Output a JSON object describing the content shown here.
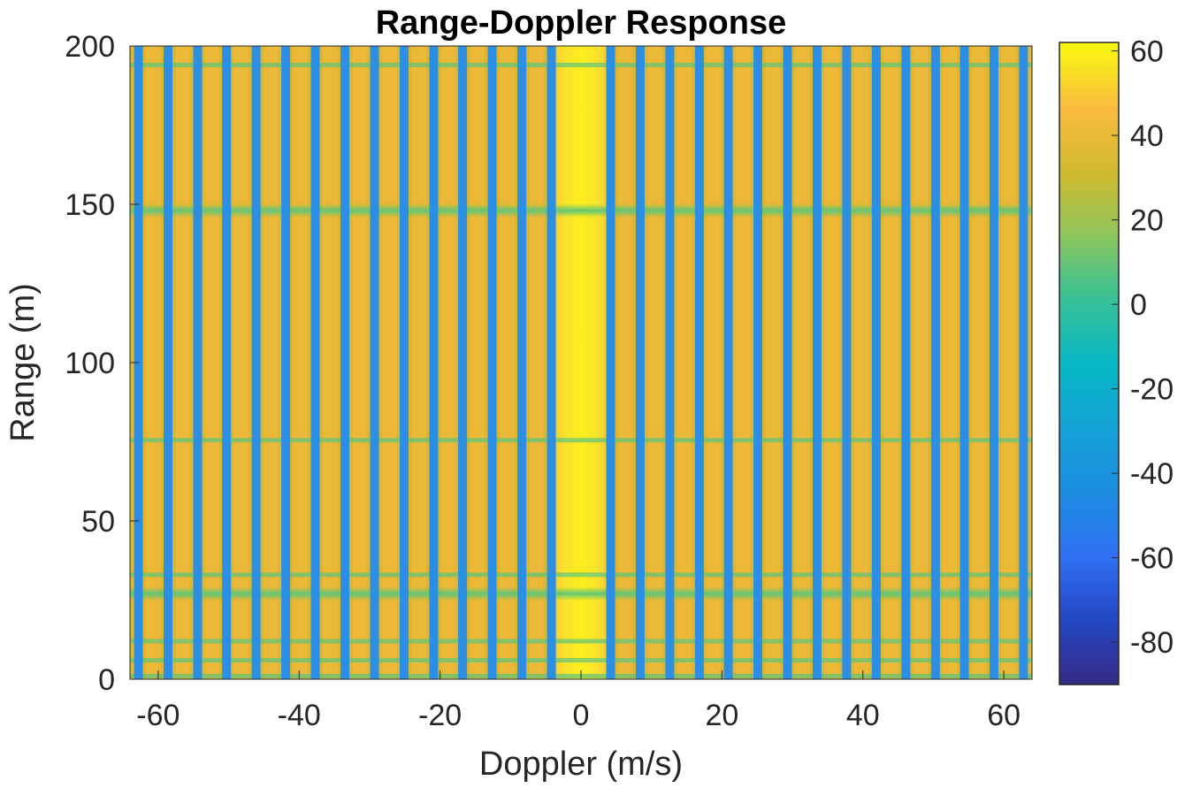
{
  "chart_data": {
    "type": "heatmap",
    "title": "Range-Doppler Response",
    "xlabel": "Doppler (m/s)",
    "ylabel": "Range (m)",
    "xlim": [
      -64,
      64
    ],
    "ylim": [
      0,
      200
    ],
    "x_ticks": [
      -60,
      -40,
      -20,
      0,
      20,
      40,
      60
    ],
    "y_ticks": [
      0,
      50,
      100,
      150,
      200
    ],
    "colorbar": {
      "clim": [
        -90,
        62
      ],
      "ticks": [
        60,
        40,
        20,
        0,
        -20,
        -40,
        -60,
        -80
      ],
      "colormap": "parula"
    },
    "doppler_nulls_mps": [
      -62.8,
      -58.6,
      -54.4,
      -50.3,
      -46.1,
      -41.9,
      -37.7,
      -33.5,
      -29.3,
      -25.1,
      -20.9,
      -16.8,
      -12.6,
      -8.4,
      -4.2,
      4.2,
      8.4,
      12.6,
      16.8,
      20.9,
      25.1,
      29.3,
      33.5,
      37.7,
      41.9,
      46.1,
      50.3,
      54.4,
      58.6,
      62.8
    ],
    "null_level_db": -40,
    "background_level_db": 30,
    "peak": {
      "doppler_mps": 0,
      "level_db": 58
    },
    "range_dips": [
      {
        "range_m": 148,
        "level_db": 5
      },
      {
        "range_m": 27,
        "level_db": 8
      },
      {
        "range_m": 75.5,
        "level_db": 12
      },
      {
        "range_m": 194,
        "level_db": 15
      },
      {
        "range_m": 33,
        "level_db": 15
      },
      {
        "range_m": 12,
        "level_db": 15
      },
      {
        "range_m": 6,
        "level_db": 15
      },
      {
        "range_m": 1,
        "level_db": 12
      }
    ]
  }
}
